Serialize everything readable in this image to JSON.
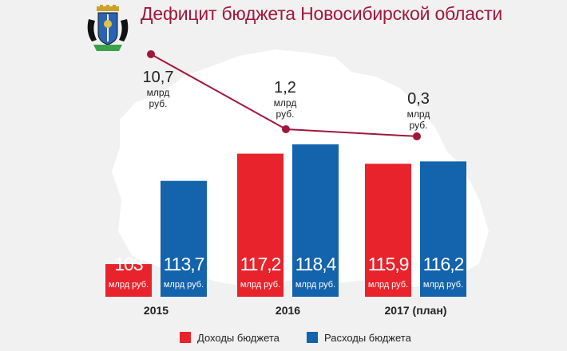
{
  "header": {
    "title": "Дефицит бюджета Новосибирской области"
  },
  "emblem": {
    "icon": "coat-of-arms-icon"
  },
  "colors": {
    "income": "#e8232c",
    "expense": "#1363ad",
    "deficit": "#a0173b",
    "title": "#a0173b",
    "map": "#ffffff"
  },
  "chart_data": {
    "type": "bar",
    "title": "Дефицит бюджета Новосибирской области",
    "categories": [
      "2015",
      "2016",
      "2017 (план)"
    ],
    "unit": "млрд руб.",
    "series": [
      {
        "name": "Доходы бюджета",
        "values": [
          103,
          117.2,
          115.9
        ],
        "labels": [
          "103",
          "117,2",
          "115,9"
        ]
      },
      {
        "name": "Расходы бюджета",
        "values": [
          113.7,
          118.4,
          116.2
        ],
        "labels": [
          "113,7",
          "118,4",
          "116,2"
        ]
      }
    ],
    "deficit": {
      "values": [
        10.7,
        1.2,
        0.3
      ],
      "labels": [
        "10,7",
        "1,2",
        "0,3"
      ],
      "unit_line1": "млрд",
      "unit_line2": "руб."
    },
    "legend": [
      "Доходы бюджета",
      "Расходы бюджета"
    ]
  }
}
